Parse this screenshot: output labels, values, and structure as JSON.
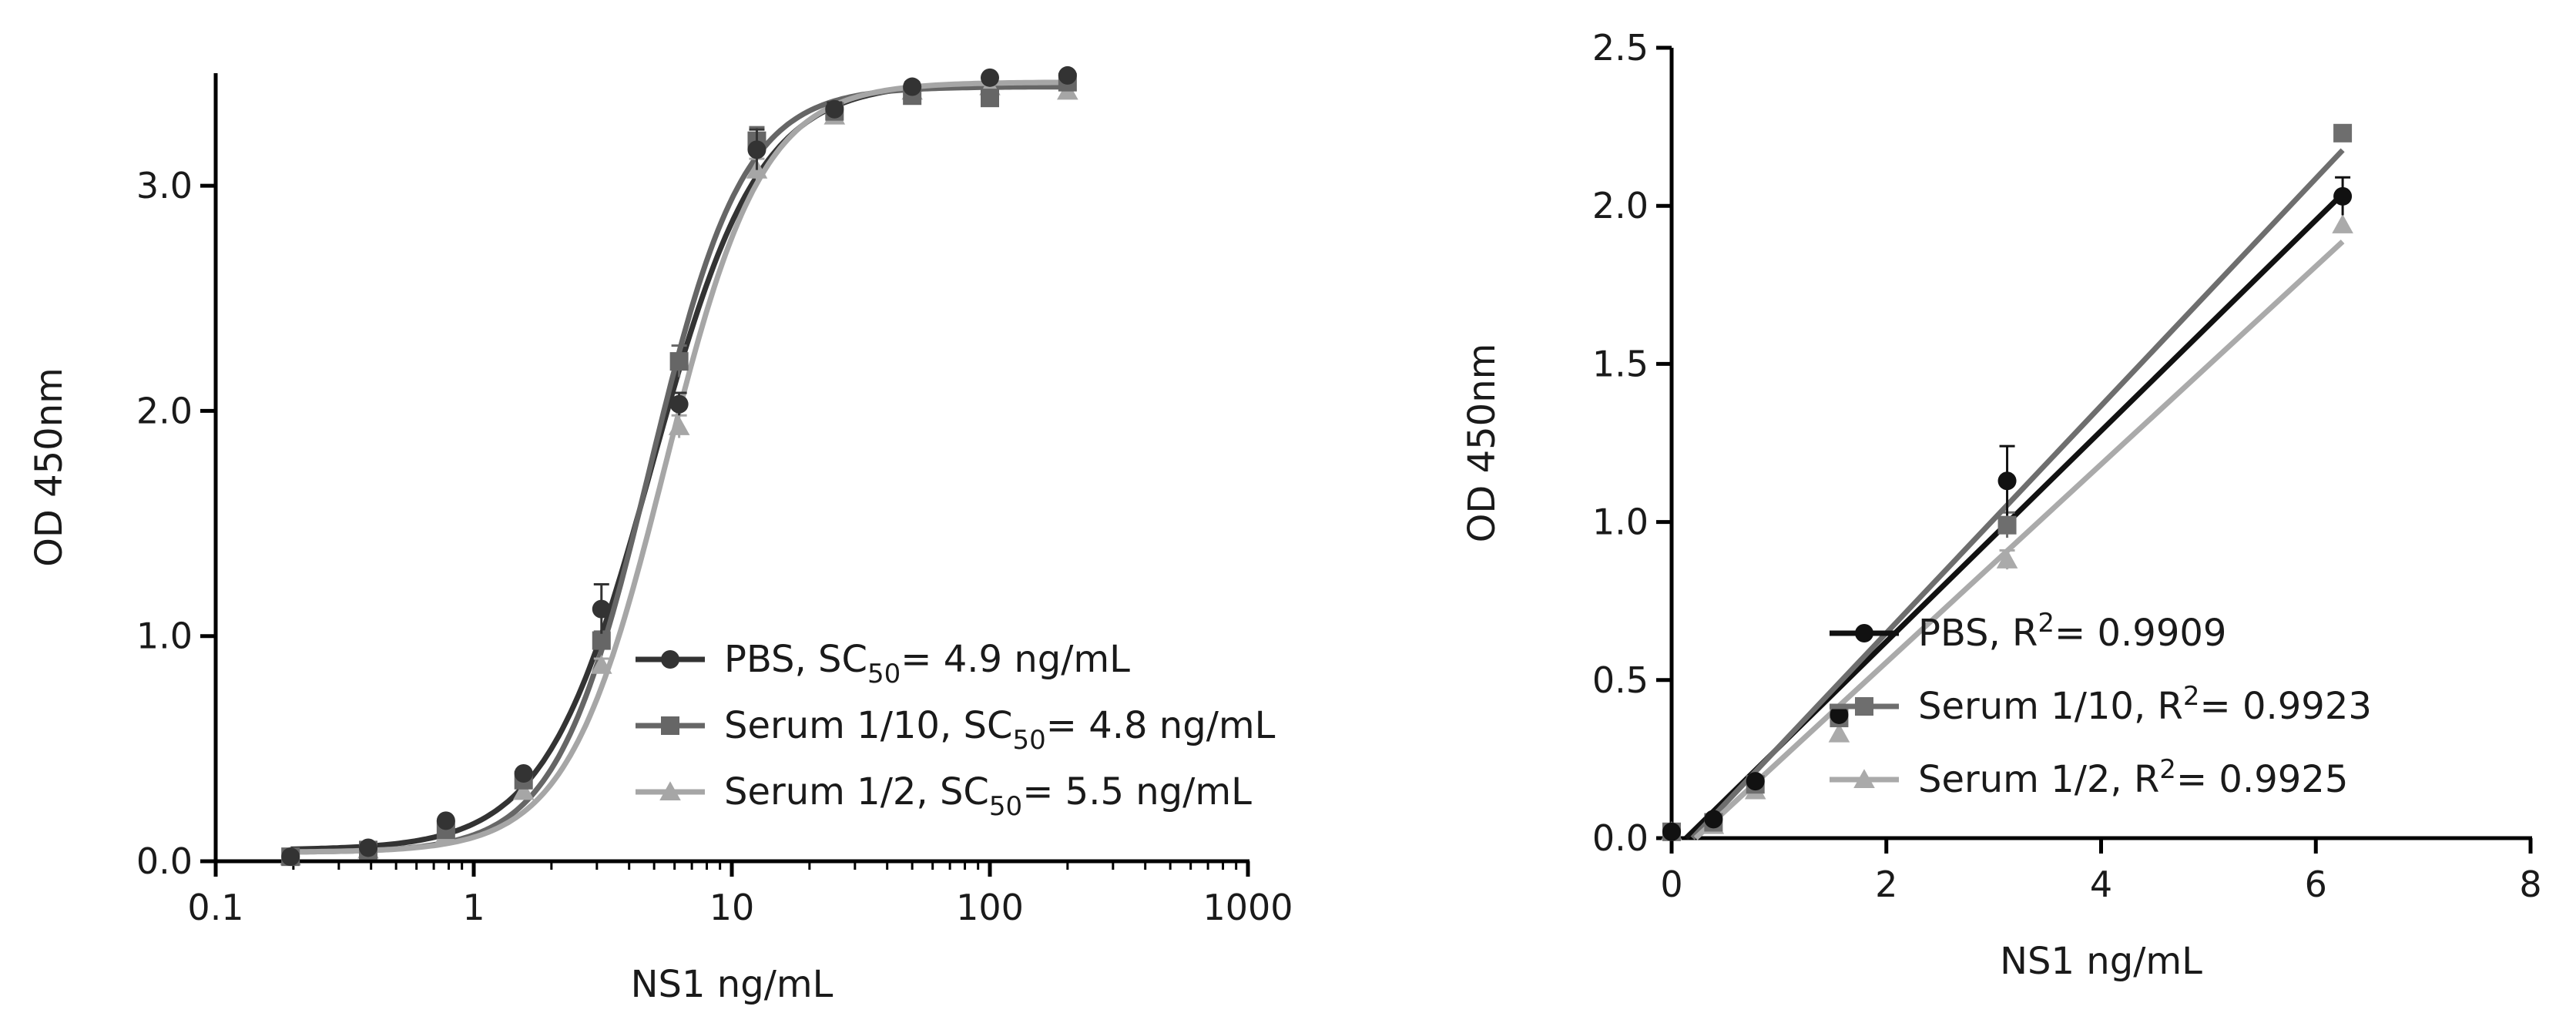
{
  "chart_data": [
    {
      "type": "line",
      "xscale": "log",
      "xlabel": "NS1 ng/mL",
      "ylabel": "OD 450nm",
      "xlim": [
        0.1,
        1000
      ],
      "ylim": [
        0,
        3.5
      ],
      "xticks": [
        0.1,
        1,
        10,
        100,
        1000
      ],
      "xtick_labels": [
        "0.1",
        "1",
        "10",
        "100",
        "1000"
      ],
      "yticks": [
        0,
        1,
        2,
        3
      ],
      "ytick_labels": [
        "0.0",
        "1.0",
        "2.0",
        "3.0"
      ],
      "x": [
        0.195,
        0.39,
        0.78,
        1.56,
        3.125,
        6.25,
        12.5,
        25,
        50,
        100,
        200
      ],
      "legend_position": "lower-right",
      "series": [
        {
          "name": "PBS",
          "legend_prefix": "PBS, SC",
          "legend_sub": "50",
          "legend_suffix": "= 4.9 ng/mL",
          "color": "#333333",
          "marker": "circle",
          "values": [
            0.02,
            0.06,
            0.18,
            0.39,
            1.12,
            2.03,
            3.16,
            3.34,
            3.44,
            3.48,
            3.49
          ],
          "errors": [
            0,
            0,
            0,
            0,
            0.11,
            0.05,
            0.09,
            0.03,
            0.02,
            0.01,
            0.01
          ],
          "fit": {
            "bottom": 0.05,
            "top": 3.46,
            "ec50": 4.9,
            "hill": 2.1
          }
        },
        {
          "name": "Serum 1/10",
          "legend_prefix": "Serum 1/10, SC",
          "legend_sub": "50",
          "legend_suffix": "= 4.8 ng/mL",
          "color": "#666666",
          "marker": "square",
          "values": [
            0.02,
            0.05,
            0.14,
            0.36,
            0.98,
            2.22,
            3.2,
            3.33,
            3.4,
            3.39,
            3.46
          ],
          "errors": [
            0,
            0,
            0,
            0,
            0.04,
            0.07,
            0.06,
            0.03,
            0.02,
            0.02,
            0.01
          ],
          "fit": {
            "bottom": 0.04,
            "top": 3.44,
            "ec50": 4.8,
            "hill": 2.4
          }
        },
        {
          "name": "Serum 1/2",
          "legend_prefix": "Serum 1/2, SC",
          "legend_sub": "50",
          "legend_suffix": "= 5.5 ng/mL",
          "color": "#a6a6a6",
          "marker": "triangle",
          "values": [
            0.02,
            0.05,
            0.12,
            0.31,
            0.87,
            1.93,
            3.07,
            3.31,
            3.42,
            3.44,
            3.42
          ],
          "errors": [
            0,
            0,
            0,
            0,
            0.03,
            0.05,
            0.05,
            0.02,
            0.02,
            0.01,
            0.01
          ],
          "fit": {
            "bottom": 0.04,
            "top": 3.46,
            "ec50": 5.5,
            "hill": 2.3
          }
        }
      ]
    },
    {
      "type": "scatter",
      "xscale": "linear",
      "xlabel": "NS1 ng/mL",
      "ylabel": "OD 450nm",
      "xlim": [
        0,
        8
      ],
      "ylim": [
        0,
        2.5
      ],
      "xticks": [
        0,
        2,
        4,
        6,
        8
      ],
      "xtick_labels": [
        "0",
        "2",
        "4",
        "6",
        "8"
      ],
      "yticks": [
        0,
        0.5,
        1,
        1.5,
        2,
        2.5
      ],
      "ytick_labels": [
        "0.0",
        "0.5",
        "1.0",
        "1.5",
        "2.0",
        "2.5"
      ],
      "x": [
        0,
        0.39,
        0.78,
        1.56,
        3.125,
        6.25
      ],
      "legend_position": "lower-right",
      "series": [
        {
          "name": "PBS",
          "legend_prefix": "PBS, R",
          "legend_sup": "2",
          "legend_suffix": "= 0.9909",
          "color": "#111111",
          "marker": "circle",
          "values": [
            0.02,
            0.06,
            0.18,
            0.39,
            1.13,
            2.03
          ],
          "errors": [
            0,
            0,
            0,
            0,
            0.11,
            0.06
          ],
          "fit": {
            "slope": 0.3333,
            "intercept": -0.045
          }
        },
        {
          "name": "Serum 1/10",
          "legend_prefix": "Serum 1/10, R",
          "legend_sup": "2",
          "legend_suffix": "= 0.9923",
          "color": "#6e6e6e",
          "marker": "square",
          "values": [
            0.02,
            0.05,
            0.17,
            0.38,
            0.99,
            2.23
          ],
          "errors": [
            0,
            0,
            0,
            0,
            0.04,
            0
          ],
          "fit": {
            "slope": 0.3594,
            "intercept": -0.07
          }
        },
        {
          "name": "Serum 1/2",
          "legend_prefix": "Serum 1/2, R",
          "legend_sup": "2",
          "legend_suffix": "= 0.9925",
          "color": "#aaaaaa",
          "marker": "triangle",
          "values": [
            0.02,
            0.04,
            0.15,
            0.33,
            0.88,
            1.94
          ],
          "errors": [
            0,
            0,
            0,
            0,
            0.03,
            0
          ],
          "fit": {
            "slope": 0.3131,
            "intercept": -0.07
          }
        }
      ]
    }
  ]
}
